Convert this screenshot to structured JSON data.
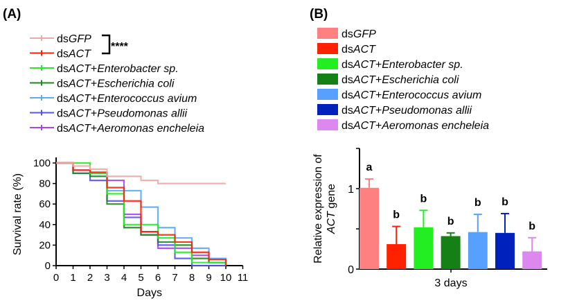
{
  "chart_data": [
    {
      "type": "line",
      "panel_label": "(A)",
      "xlabel": "Days",
      "ylabel": "Survival rate (%)",
      "xlim": [
        0,
        11
      ],
      "ylim": [
        0,
        100
      ],
      "xticks": [
        0,
        1,
        2,
        3,
        4,
        5,
        6,
        7,
        8,
        9,
        10,
        11
      ],
      "yticks": [
        0,
        20,
        40,
        60,
        80,
        100
      ],
      "significance": "****",
      "x": [
        0,
        1,
        2,
        3,
        4,
        5,
        6,
        7,
        8,
        9,
        10
      ],
      "series": [
        {
          "prefix": "ds",
          "name": "GFP",
          "color": "#f4a6a6",
          "values": [
            100,
            97,
            94,
            87,
            87,
            83,
            80,
            80,
            80,
            80,
            80
          ]
        },
        {
          "prefix": "ds",
          "name": "ACT",
          "color": "#ff2200",
          "values": [
            100,
            93,
            91,
            76,
            63,
            33,
            30,
            23,
            13,
            6,
            0
          ]
        },
        {
          "prefix": "ds",
          "name": "ACT+Enterobacter sp.",
          "color": "#22ee22",
          "values": [
            100,
            100,
            90,
            70,
            40,
            40,
            27,
            13,
            3,
            3,
            0
          ]
        },
        {
          "prefix": "ds",
          "name": "ACT+Escherichia coli",
          "color": "#1a8a1a",
          "values": [
            100,
            90,
            87,
            60,
            37,
            30,
            23,
            20,
            7,
            3,
            0
          ]
        },
        {
          "prefix": "ds",
          "name": "ACT+Enterococcus avium",
          "color": "#5aa8ff",
          "values": [
            100,
            93,
            90,
            73,
            73,
            57,
            37,
            27,
            17,
            7,
            0
          ]
        },
        {
          "prefix": "ds",
          "name": "ACT+Pseudomonas allii",
          "color": "#5555ee",
          "values": [
            100,
            90,
            83,
            63,
            47,
            30,
            20,
            7,
            0,
            0,
            0
          ]
        },
        {
          "prefix": "ds",
          "name": "ACT+Aeromonas encheleia",
          "color": "#aa44ee",
          "values": [
            100,
            93,
            90,
            83,
            50,
            33,
            17,
            17,
            10,
            3,
            0
          ]
        }
      ]
    },
    {
      "type": "bar",
      "panel_label": "(B)",
      "xlabel": "3 days",
      "ylabel_line1": "Relative expression of",
      "ylabel_line2_italic": "ACT",
      "ylabel_line2_rest": " gene",
      "ylim": [
        0,
        1.5
      ],
      "yticks": [
        0,
        1
      ],
      "series": [
        {
          "prefix": "ds",
          "name": "GFP",
          "color": "#ff8080",
          "value": 1.01,
          "error": 0.11,
          "letter": "a"
        },
        {
          "prefix": "ds",
          "name": "ACT",
          "color": "#ff2200",
          "value": 0.31,
          "error": 0.22,
          "letter": "b"
        },
        {
          "prefix": "ds",
          "name": "ACT+Enterobacter sp.",
          "color": "#22ee22",
          "value": 0.52,
          "error": 0.21,
          "letter": "b"
        },
        {
          "prefix": "ds",
          "name": "ACT+Escherichia coli",
          "color": "#158015",
          "value": 0.41,
          "error": 0.04,
          "letter": "b"
        },
        {
          "prefix": "ds",
          "name": "ACT+Enterococcus avium",
          "color": "#58a0ff",
          "value": 0.46,
          "error": 0.22,
          "letter": "b"
        },
        {
          "prefix": "ds",
          "name": "ACT+Pseudomonas allii",
          "color": "#0022bb",
          "value": 0.45,
          "error": 0.24,
          "letter": "b"
        },
        {
          "prefix": "ds",
          "name": "ACT+Aeromonas encheleia",
          "color": "#dd88ee",
          "value": 0.22,
          "error": 0.17,
          "letter": "b"
        }
      ]
    }
  ]
}
